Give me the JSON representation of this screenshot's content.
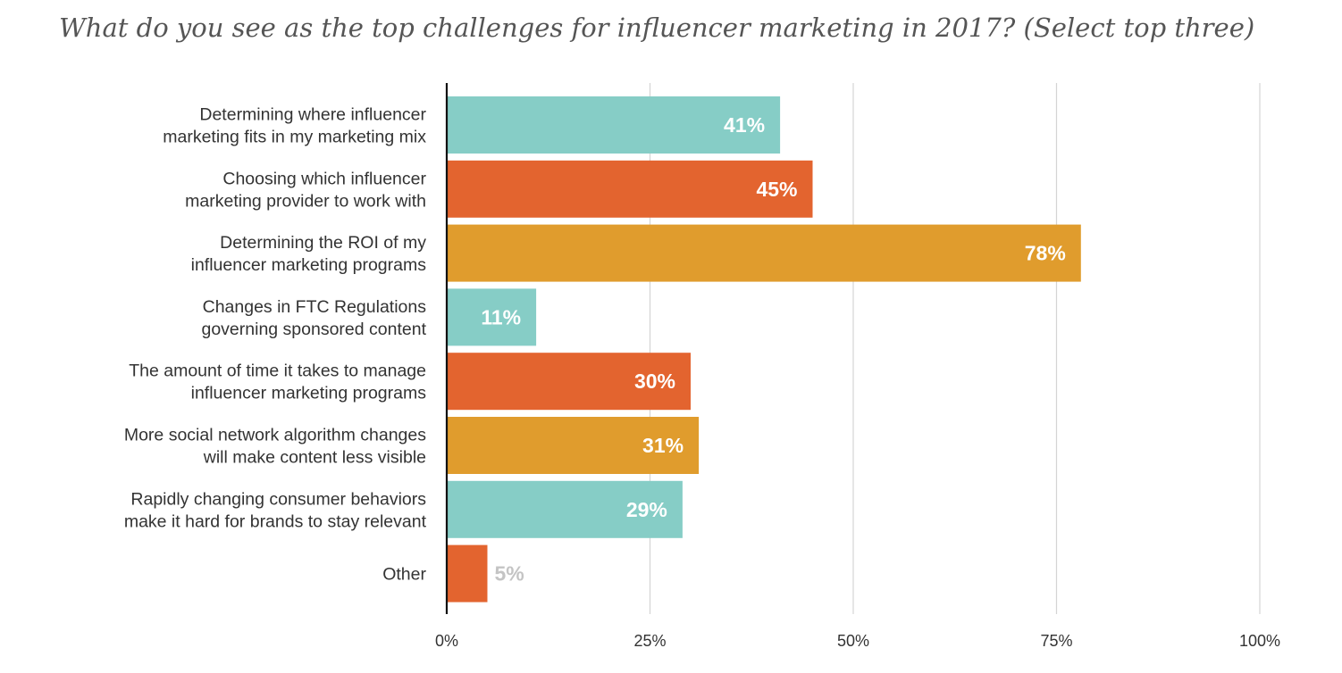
{
  "chart_data": {
    "type": "bar",
    "orientation": "horizontal",
    "title": "What do you see as the top challenges for influencer marketing in 2017? (Select top three)",
    "categories": [
      [
        "Determining where influencer",
        "marketing fits in my marketing mix"
      ],
      [
        "Choosing which influencer",
        "marketing provider to work with"
      ],
      [
        "Determining the ROI of my",
        "influencer marketing programs"
      ],
      [
        "Changes in FTC Regulations",
        "governing sponsored content"
      ],
      [
        "The amount of time it takes to manage",
        "influencer marketing programs"
      ],
      [
        "More social network algorithm changes",
        "will make content less visible"
      ],
      [
        "Rapidly changing consumer behaviors",
        "make it hard for brands to stay relevant"
      ],
      [
        "Other"
      ]
    ],
    "values": [
      41,
      45,
      78,
      11,
      30,
      31,
      29,
      5
    ],
    "value_labels": [
      "41%",
      "45%",
      "78%",
      "11%",
      "30%",
      "31%",
      "29%",
      "5%"
    ],
    "bar_colors": [
      "#86cdc6",
      "#e3642f",
      "#e09c2d",
      "#86cdc6",
      "#e3642f",
      "#e09c2d",
      "#86cdc6",
      "#e3642f"
    ],
    "label_colors": [
      "#ffffff",
      "#ffffff",
      "#ffffff",
      "#ffffff",
      "#ffffff",
      "#ffffff",
      "#ffffff",
      "#c4c4c4"
    ],
    "xlim": [
      0,
      100
    ],
    "xticks": [
      0,
      25,
      50,
      75,
      100
    ],
    "xtick_labels": [
      "0%",
      "25%",
      "50%",
      "75%",
      "100%"
    ],
    "xlabel": "",
    "ylabel": "",
    "grid": true,
    "grid_color": "#d4d4d4",
    "axis_color": "#111111",
    "legend": "none"
  }
}
